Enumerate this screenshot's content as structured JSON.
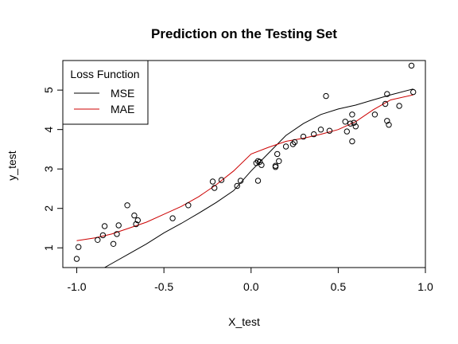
{
  "chart_data": {
    "type": "scatter",
    "title": "Prediction on the Testing Set",
    "xlabel": "X_test",
    "ylabel": "y_test",
    "xlim": [
      -1.08,
      1.0
    ],
    "ylim": [
      0.5,
      5.75
    ],
    "xticks": [
      -1.0,
      -0.5,
      0.0,
      0.5,
      1.0
    ],
    "xtick_labels": [
      "-1.0",
      "-0.5",
      "0.0",
      "0.5",
      "1.0"
    ],
    "yticks": [
      1,
      2,
      3,
      4,
      5
    ],
    "ytick_labels": [
      "1",
      "2",
      "3",
      "4",
      "5"
    ],
    "grid": false,
    "legend": {
      "title": "Loss Function",
      "placement": "top-left",
      "entries": [
        {
          "label": "MSE",
          "color": "#000000"
        },
        {
          "label": "MAE",
          "color": "#cc0000"
        }
      ]
    },
    "points": [
      {
        "x": -1.0,
        "y": 0.72
      },
      {
        "x": -0.99,
        "y": 1.02
      },
      {
        "x": -0.88,
        "y": 1.2
      },
      {
        "x": -0.85,
        "y": 1.32
      },
      {
        "x": -0.84,
        "y": 1.55
      },
      {
        "x": -0.79,
        "y": 1.1
      },
      {
        "x": -0.77,
        "y": 1.35
      },
      {
        "x": -0.76,
        "y": 1.57
      },
      {
        "x": -0.71,
        "y": 2.08
      },
      {
        "x": -0.67,
        "y": 1.82
      },
      {
        "x": -0.66,
        "y": 1.6
      },
      {
        "x": -0.65,
        "y": 1.7
      },
      {
        "x": -0.45,
        "y": 1.75
      },
      {
        "x": -0.36,
        "y": 2.08
      },
      {
        "x": -0.22,
        "y": 2.68
      },
      {
        "x": -0.21,
        "y": 2.52
      },
      {
        "x": -0.17,
        "y": 2.72
      },
      {
        "x": -0.08,
        "y": 2.57
      },
      {
        "x": -0.06,
        "y": 2.7
      },
      {
        "x": 0.03,
        "y": 3.15
      },
      {
        "x": 0.04,
        "y": 3.2
      },
      {
        "x": 0.04,
        "y": 2.7
      },
      {
        "x": 0.05,
        "y": 3.18
      },
      {
        "x": 0.06,
        "y": 3.1
      },
      {
        "x": 0.14,
        "y": 3.05
      },
      {
        "x": 0.14,
        "y": 3.08
      },
      {
        "x": 0.15,
        "y": 3.38
      },
      {
        "x": 0.16,
        "y": 3.2
      },
      {
        "x": 0.2,
        "y": 3.57
      },
      {
        "x": 0.24,
        "y": 3.63
      },
      {
        "x": 0.25,
        "y": 3.68
      },
      {
        "x": 0.3,
        "y": 3.82
      },
      {
        "x": 0.36,
        "y": 3.88
      },
      {
        "x": 0.4,
        "y": 4.0
      },
      {
        "x": 0.43,
        "y": 4.85
      },
      {
        "x": 0.45,
        "y": 3.97
      },
      {
        "x": 0.54,
        "y": 4.2
      },
      {
        "x": 0.55,
        "y": 3.95
      },
      {
        "x": 0.57,
        "y": 4.15
      },
      {
        "x": 0.58,
        "y": 4.38
      },
      {
        "x": 0.58,
        "y": 3.7
      },
      {
        "x": 0.59,
        "y": 4.17
      },
      {
        "x": 0.6,
        "y": 4.08
      },
      {
        "x": 0.71,
        "y": 4.38
      },
      {
        "x": 0.77,
        "y": 4.65
      },
      {
        "x": 0.78,
        "y": 4.9
      },
      {
        "x": 0.78,
        "y": 4.22
      },
      {
        "x": 0.79,
        "y": 4.12
      },
      {
        "x": 0.85,
        "y": 4.6
      },
      {
        "x": 0.92,
        "y": 5.62
      },
      {
        "x": 0.93,
        "y": 4.95
      }
    ],
    "series": [
      {
        "name": "MSE",
        "color": "#000000",
        "x": [
          -1.0,
          -0.9,
          -0.8,
          -0.7,
          -0.6,
          -0.5,
          -0.4,
          -0.3,
          -0.2,
          -0.1,
          0.0,
          0.1,
          0.2,
          0.3,
          0.4,
          0.5,
          0.6,
          0.7,
          0.8,
          0.93
        ],
        "y": [
          0.2,
          0.35,
          0.6,
          0.85,
          1.1,
          1.38,
          1.62,
          1.88,
          2.15,
          2.45,
          2.95,
          3.4,
          3.85,
          4.15,
          4.38,
          4.52,
          4.62,
          4.75,
          4.88,
          5.03
        ]
      },
      {
        "name": "MAE",
        "color": "#cc0000",
        "x": [
          -1.0,
          -0.9,
          -0.8,
          -0.7,
          -0.6,
          -0.5,
          -0.4,
          -0.3,
          -0.2,
          -0.1,
          0.0,
          0.1,
          0.2,
          0.3,
          0.4,
          0.5,
          0.6,
          0.7,
          0.8,
          0.93
        ],
        "y": [
          1.18,
          1.25,
          1.35,
          1.5,
          1.65,
          1.85,
          2.05,
          2.3,
          2.6,
          2.95,
          3.38,
          3.55,
          3.7,
          3.78,
          3.88,
          4.0,
          4.2,
          4.5,
          4.75,
          4.88
        ]
      }
    ]
  }
}
